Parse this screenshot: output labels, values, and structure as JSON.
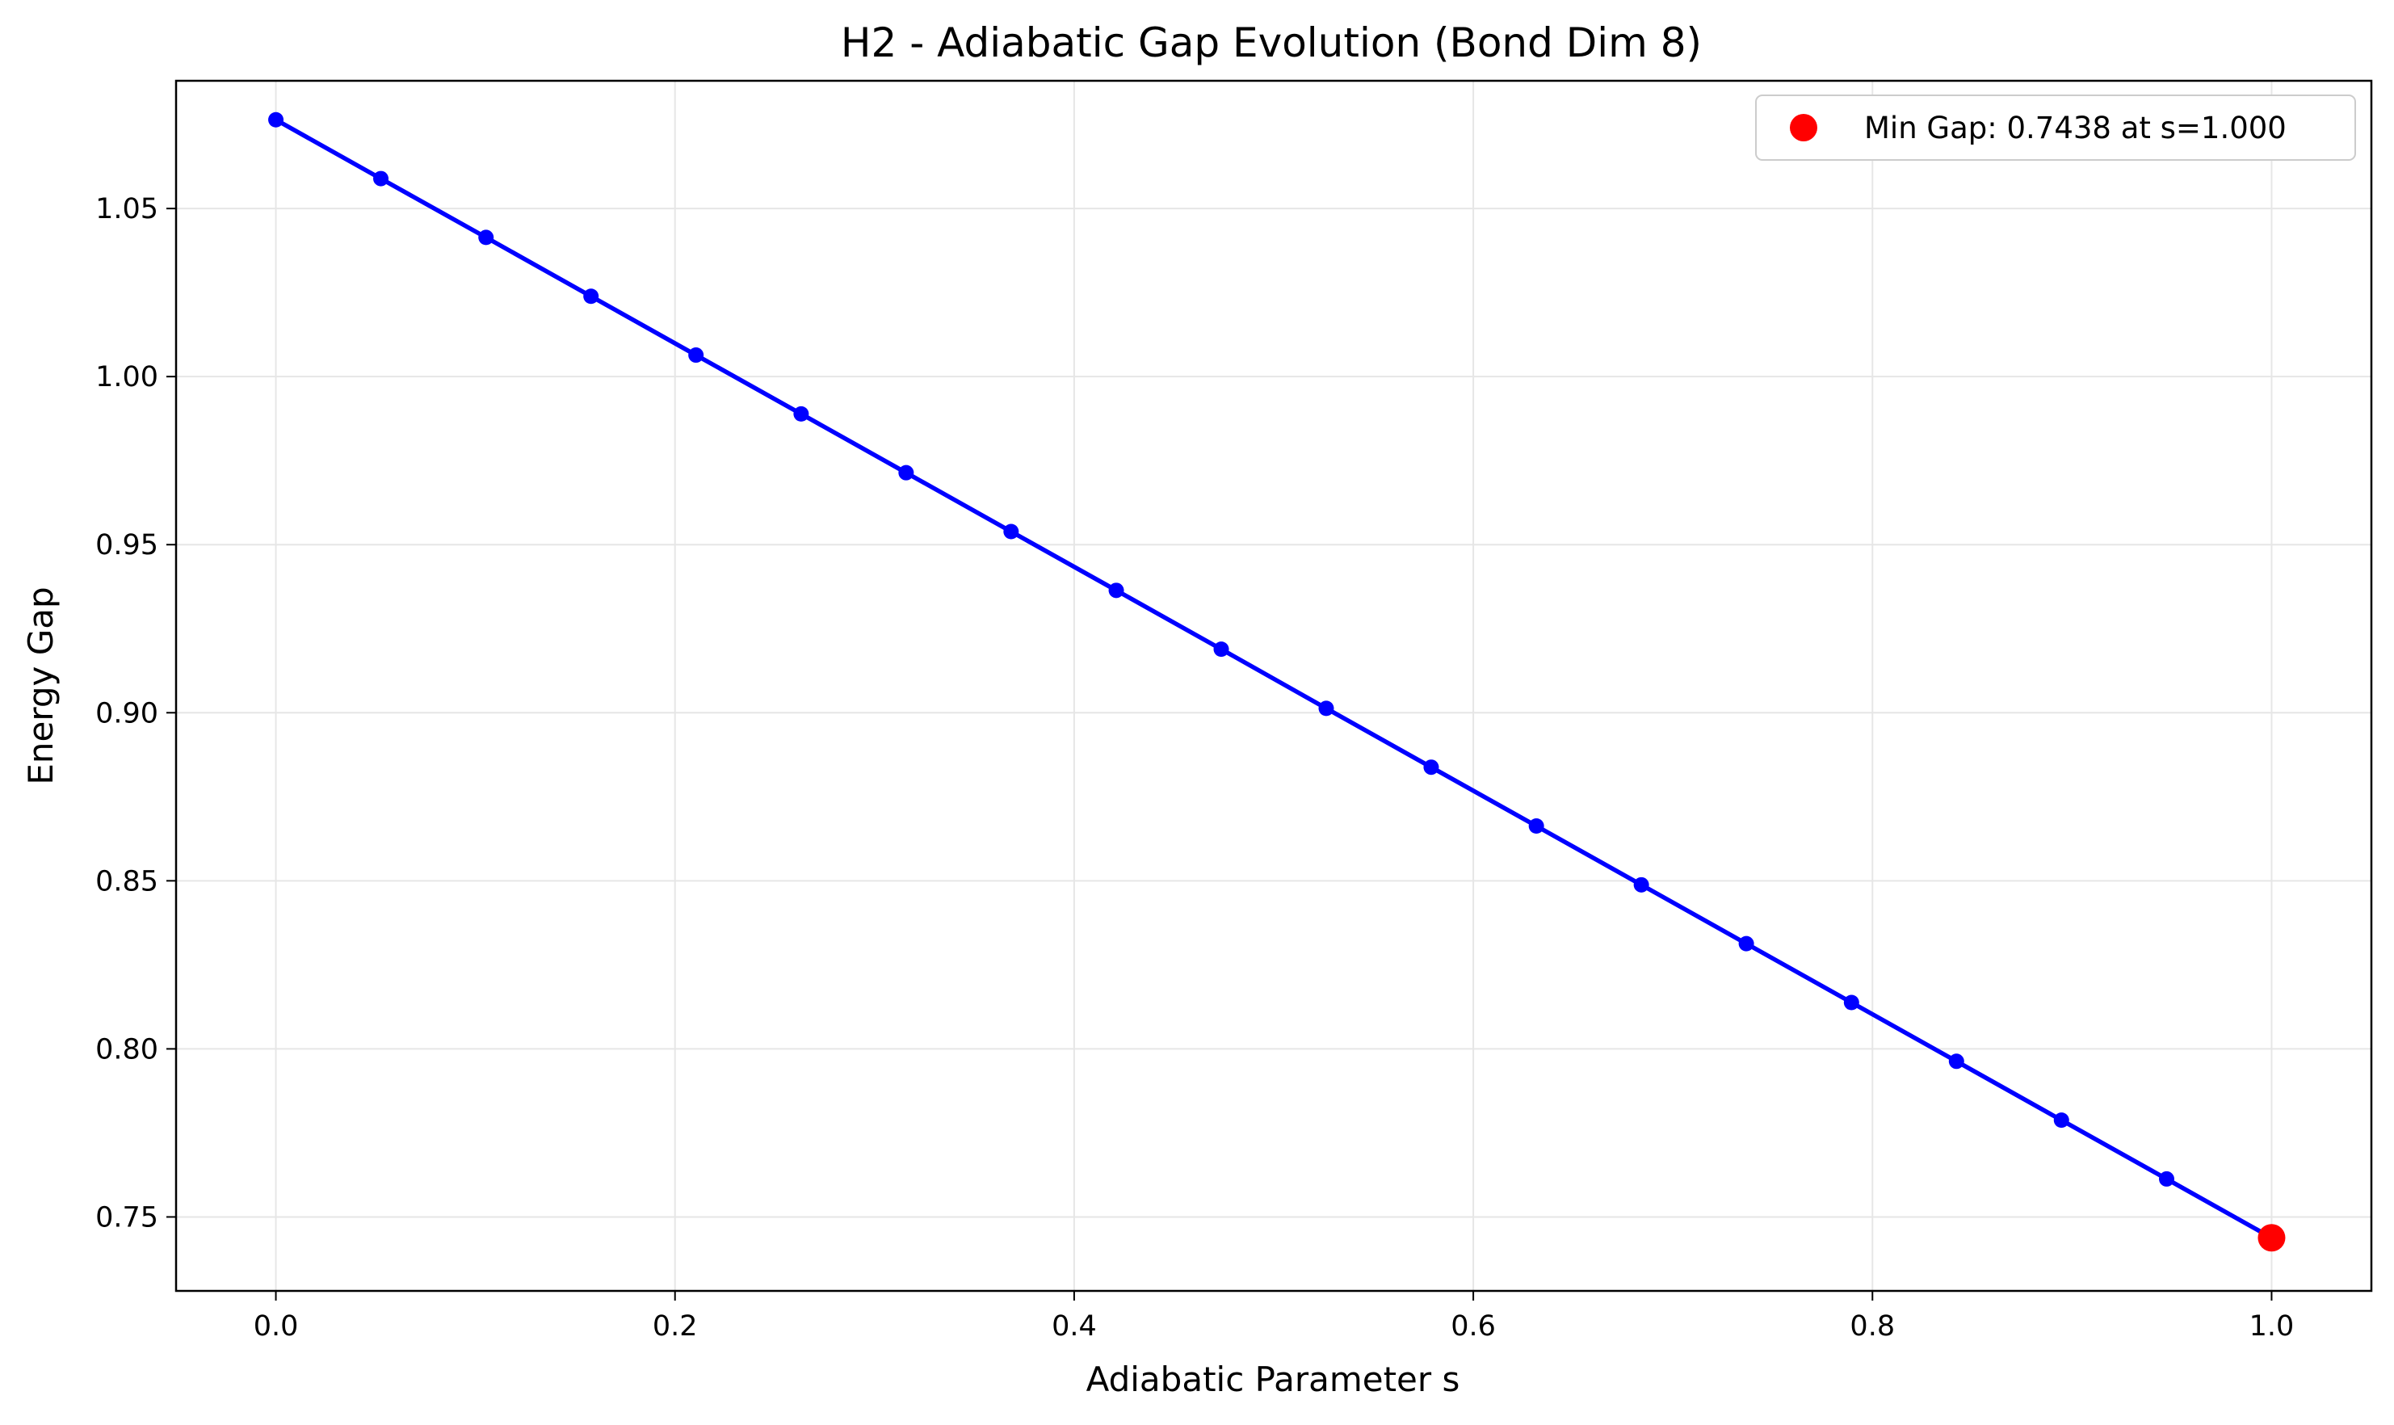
{
  "chart_data": {
    "type": "line",
    "title": "H2 - Adiabatic Gap Evolution (Bond Dim 8)",
    "xlabel": "Adiabatic Parameter s",
    "ylabel": "Energy Gap",
    "xlim": [
      -0.05,
      1.05
    ],
    "ylim": [
      0.728,
      1.088
    ],
    "xticks": [
      0.0,
      0.2,
      0.4,
      0.6,
      0.8,
      1.0
    ],
    "xtick_labels": [
      "0.0",
      "0.2",
      "0.4",
      "0.6",
      "0.8",
      "1.0"
    ],
    "yticks": [
      0.75,
      0.8,
      0.85,
      0.9,
      0.95,
      1.0,
      1.05
    ],
    "ytick_labels": [
      "0.75",
      "0.80",
      "0.85",
      "0.90",
      "0.95",
      "1.00",
      "1.05"
    ],
    "grid": true,
    "legend_position": "top-right",
    "series": [
      {
        "color": "#0000ff",
        "x": [
          0.0,
          0.0526,
          0.1053,
          0.1579,
          0.2105,
          0.2632,
          0.3158,
          0.3684,
          0.4211,
          0.4737,
          0.5263,
          0.5789,
          0.6316,
          0.6842,
          0.7368,
          0.7895,
          0.8421,
          0.8947,
          0.9474,
          1.0
        ],
        "y": [
          1.0764,
          1.0589,
          1.0414,
          1.0239,
          1.0064,
          0.9889,
          0.9714,
          0.9539,
          0.9364,
          0.9189,
          0.9013,
          0.8838,
          0.8663,
          0.8488,
          0.8313,
          0.8138,
          0.7963,
          0.7788,
          0.7613,
          0.7438
        ]
      }
    ],
    "highlight": {
      "name": "Min Gap: 0.7438 at s=1.000",
      "x": 1.0,
      "y": 0.7438,
      "color": "#ff0000"
    }
  }
}
